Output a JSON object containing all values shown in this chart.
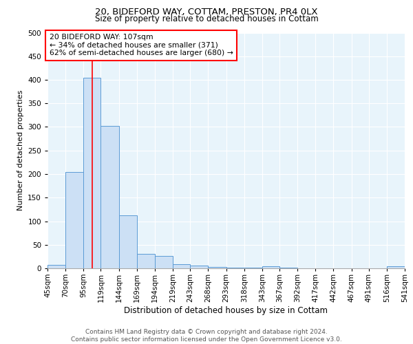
{
  "title_line1": "20, BIDEFORD WAY, COTTAM, PRESTON, PR4 0LX",
  "title_line2": "Size of property relative to detached houses in Cottam",
  "xlabel": "Distribution of detached houses by size in Cottam",
  "ylabel": "Number of detached properties",
  "footer_line1": "Contains HM Land Registry data © Crown copyright and database right 2024.",
  "footer_line2": "Contains public sector information licensed under the Open Government Licence v3.0.",
  "bar_edges": [
    45,
    70,
    95,
    119,
    144,
    169,
    194,
    219,
    243,
    268,
    293,
    318,
    343,
    367,
    392,
    417,
    442,
    467,
    491,
    516,
    541
  ],
  "bar_heights": [
    8,
    204,
    405,
    302,
    112,
    30,
    27,
    9,
    6,
    3,
    2,
    1,
    4,
    1,
    0,
    0,
    0,
    0,
    0,
    4,
    0
  ],
  "bar_color": "#cce0f5",
  "bar_edge_color": "#5b9bd5",
  "tick_labels": [
    "45sqm",
    "70sqm",
    "95sqm",
    "119sqm",
    "144sqm",
    "169sqm",
    "194sqm",
    "219sqm",
    "243sqm",
    "268sqm",
    "293sqm",
    "318sqm",
    "343sqm",
    "367sqm",
    "392sqm",
    "417sqm",
    "442sqm",
    "467sqm",
    "491sqm",
    "516sqm",
    "541sqm"
  ],
  "red_line_x": 107,
  "annotation_text": "20 BIDEFORD WAY: 107sqm\n← 34% of detached houses are smaller (371)\n62% of semi-detached houses are larger (680) →",
  "background_color": "#e8f4fb",
  "ylim": [
    0,
    500
  ],
  "yticks": [
    0,
    50,
    100,
    150,
    200,
    250,
    300,
    350,
    400,
    450,
    500
  ],
  "title1_fontsize": 9.5,
  "title2_fontsize": 8.5,
  "xlabel_fontsize": 8.5,
  "ylabel_fontsize": 8.0,
  "tick_fontsize": 7.5,
  "annotation_fontsize": 7.8,
  "footer_fontsize": 6.5
}
